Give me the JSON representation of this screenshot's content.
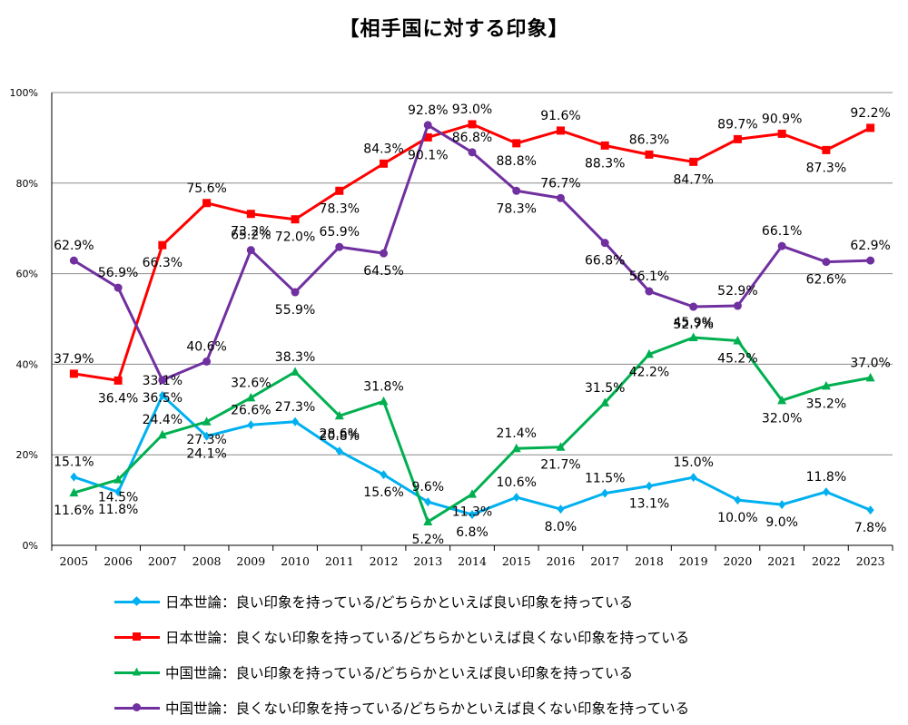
{
  "title": "【相手国に対する印象】",
  "chart_data": {
    "type": "line",
    "title": "【相手国に対する印象】",
    "xlabel": "",
    "ylabel": "",
    "categories": [
      "2005",
      "2006",
      "2007",
      "2008",
      "2009",
      "2010",
      "2011",
      "2012",
      "2013",
      "2014",
      "2015",
      "2016",
      "2017",
      "2018",
      "2019",
      "2020",
      "2021",
      "2022",
      "2023"
    ],
    "yticks": [
      "0%",
      "20%",
      "40%",
      "60%",
      "80%",
      "100%"
    ],
    "ylim": [
      0,
      100
    ],
    "grid": true,
    "legend_position": "bottom",
    "series": [
      {
        "name": "日本世論：良い印象を持っている/どちらかといえば良い印象を持っている",
        "color": "#00B0F0",
        "marker": "diamond",
        "values": [
          15.1,
          11.8,
          33.1,
          24.1,
          26.6,
          27.3,
          20.8,
          15.6,
          9.6,
          6.8,
          10.6,
          8.0,
          11.5,
          13.1,
          15.0,
          10.0,
          9.0,
          11.8,
          7.8
        ],
        "labels": [
          "15.1%",
          "11.8%",
          "33.1%",
          "24.1%",
          "26.6%",
          "27.3%",
          "20.8%",
          "15.6%",
          "9.6%",
          "6.8%",
          "10.6%",
          "8.0%",
          "11.5%",
          "13.1%",
          "15.0%",
          "10.0%",
          "9.0%",
          "11.8%",
          "7.8%"
        ]
      },
      {
        "name": "日本世論：良くない印象を持っている/どちらかといえば良くない印象を持っている",
        "color": "#FF0000",
        "marker": "square",
        "values": [
          37.9,
          36.4,
          66.3,
          75.6,
          73.2,
          72.0,
          78.3,
          84.3,
          90.1,
          93.0,
          88.8,
          91.6,
          88.3,
          86.3,
          84.7,
          89.7,
          90.9,
          87.3,
          92.2
        ],
        "labels": [
          "37.9%",
          "36.4%",
          "66.3%",
          "75.6%",
          "73.2%",
          "72.0%",
          "78.3%",
          "84.3%",
          "90.1%",
          "93.0%",
          "88.8%",
          "91.6%",
          "88.3%",
          "86.3%",
          "84.7%",
          "89.7%",
          "90.9%",
          "87.3%",
          "92.2%"
        ]
      },
      {
        "name": "中国世論：良い印象を持っている/どちらかといえば良い印象を持っている",
        "color": "#00B050",
        "marker": "triangle",
        "values": [
          11.6,
          14.5,
          24.4,
          27.3,
          32.6,
          38.3,
          28.6,
          31.8,
          5.2,
          11.3,
          21.4,
          21.7,
          31.5,
          42.2,
          45.9,
          45.2,
          32.0,
          35.2,
          37.0
        ],
        "labels": [
          "11.6%",
          "14.5%",
          "24.4%",
          "27.3%",
          "32.6%",
          "38.3%",
          "28.6%",
          "31.8%",
          "5.2%",
          "11.3%",
          "21.4%",
          "21.7%",
          "31.5%",
          "42.2%",
          "45.9%",
          "45.2%",
          "32.0%",
          "35.2%",
          "37.0%"
        ]
      },
      {
        "name": "中国世論：良くない印象を持っている/どちらかといえば良くない印象を持っている",
        "color": "#7030A0",
        "marker": "circle",
        "values": [
          62.9,
          56.9,
          36.5,
          40.6,
          65.2,
          55.9,
          65.9,
          64.5,
          92.8,
          86.8,
          78.3,
          76.7,
          66.8,
          56.1,
          52.7,
          52.9,
          66.1,
          62.6,
          62.9
        ],
        "labels": [
          "62.9%",
          "56.9%",
          "36.5%",
          "40.6%",
          "65.2%",
          "55.9%",
          "65.9%",
          "64.5%",
          "92.8%",
          "86.8%",
          "78.3%",
          "76.7%",
          "66.8%",
          "56.1%",
          "52.7%",
          "52.9%",
          "66.1%",
          "62.6%",
          "62.9%"
        ]
      }
    ]
  }
}
